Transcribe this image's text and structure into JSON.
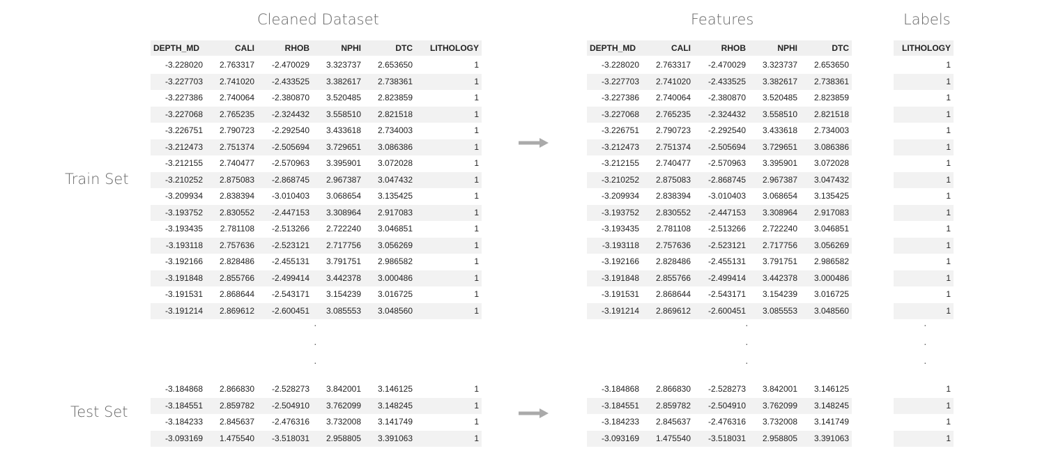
{
  "titles": {
    "cleaned": "Cleaned Dataset",
    "features": "Features",
    "labels": "Labels"
  },
  "side_labels": {
    "train": "Train Set",
    "test": "Test Set"
  },
  "columns": [
    "DEPTH_MD",
    "CALI",
    "RHOB",
    "NPHI",
    "DTC",
    "LITHOLOGY"
  ],
  "ellipsis": "·",
  "arrow_icon": "right-arrow-icon",
  "train_rows": [
    [
      "-3.228020",
      "2.763317",
      "-2.470029",
      "3.323737",
      "2.653650",
      "1"
    ],
    [
      "-3.227703",
      "2.741020",
      "-2.433525",
      "3.382617",
      "2.738361",
      "1"
    ],
    [
      "-3.227386",
      "2.740064",
      "-2.380870",
      "3.520485",
      "2.823859",
      "1"
    ],
    [
      "-3.227068",
      "2.765235",
      "-2.324432",
      "3.558510",
      "2.821518",
      "1"
    ],
    [
      "-3.226751",
      "2.790723",
      "-2.292540",
      "3.433618",
      "2.734003",
      "1"
    ],
    [
      "-3.212473",
      "2.751374",
      "-2.505694",
      "3.729651",
      "3.086386",
      "1"
    ],
    [
      "-3.212155",
      "2.740477",
      "-2.570963",
      "3.395901",
      "3.072028",
      "1"
    ],
    [
      "-3.210252",
      "2.875083",
      "-2.868745",
      "2.967387",
      "3.047432",
      "1"
    ],
    [
      "-3.209934",
      "2.838394",
      "-3.010403",
      "3.068654",
      "3.135425",
      "1"
    ],
    [
      "-3.193752",
      "2.830552",
      "-2.447153",
      "3.308964",
      "2.917083",
      "1"
    ],
    [
      "-3.193435",
      "2.781108",
      "-2.513266",
      "2.722240",
      "3.046851",
      "1"
    ],
    [
      "-3.193118",
      "2.757636",
      "-2.523121",
      "2.717756",
      "3.056269",
      "1"
    ],
    [
      "-3.192166",
      "2.828486",
      "-2.455131",
      "3.791751",
      "2.986582",
      "1"
    ],
    [
      "-3.191848",
      "2.855766",
      "-2.499414",
      "3.442378",
      "3.000486",
      "1"
    ],
    [
      "-3.191531",
      "2.868644",
      "-2.543171",
      "3.154239",
      "3.016725",
      "1"
    ],
    [
      "-3.191214",
      "2.869612",
      "-2.600451",
      "3.085553",
      "3.048560",
      "1"
    ]
  ],
  "test_rows": [
    [
      "-3.184868",
      "2.866830",
      "-2.528273",
      "3.842001",
      "3.146125",
      "1"
    ],
    [
      "-3.184551",
      "2.859782",
      "-2.504910",
      "3.762099",
      "3.148245",
      "1"
    ],
    [
      "-3.184233",
      "2.845637",
      "-2.476316",
      "3.732008",
      "3.141749",
      "1"
    ],
    [
      "-3.093169",
      "1.475540",
      "-3.518031",
      "2.958805",
      "3.391063",
      "1"
    ]
  ]
}
